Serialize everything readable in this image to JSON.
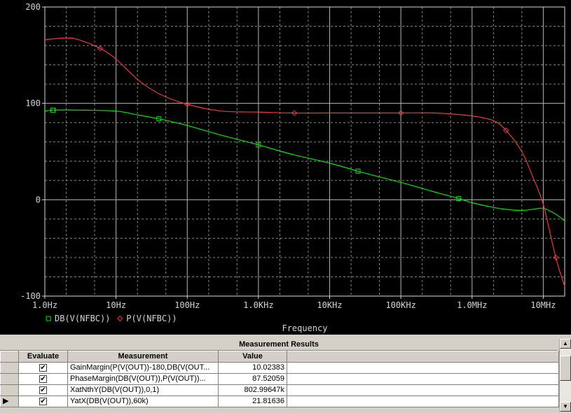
{
  "chart_data": {
    "type": "line",
    "xscale": "log",
    "xlim": [
      1,
      20000000
    ],
    "ylim": [
      -100,
      200
    ],
    "grid": true,
    "xlabel": "Frequency",
    "ylabel": "",
    "x_ticks": [
      {
        "value": 1,
        "label": "1.0Hz"
      },
      {
        "value": 10,
        "label": "10Hz"
      },
      {
        "value": 100,
        "label": "100Hz"
      },
      {
        "value": 1000,
        "label": "1.0KHz"
      },
      {
        "value": 10000,
        "label": "10KHz"
      },
      {
        "value": 100000,
        "label": "100KHz"
      },
      {
        "value": 1000000,
        "label": "1.0MHz"
      },
      {
        "value": 10000000,
        "label": "10MHz"
      }
    ],
    "y_ticks": [
      {
        "value": 200,
        "label": "200"
      },
      {
        "value": 100,
        "label": "100"
      },
      {
        "value": 0,
        "label": "0"
      },
      {
        "value": -100,
        "label": "-100"
      }
    ],
    "legend_position": "bottom-left",
    "series": [
      {
        "name": "DB(V(NFBC))",
        "color": "#00e800",
        "marker": "square",
        "x": [
          1,
          1.3,
          3,
          10,
          20,
          40,
          100,
          300,
          1000,
          3000,
          10000,
          30000,
          100000,
          300000,
          600000,
          1000000,
          2000000,
          3000000,
          5000000,
          7000000,
          10000000,
          15000000,
          20000000
        ],
        "y": [
          92,
          93,
          93,
          92,
          88,
          84,
          77,
          67,
          57,
          47,
          38,
          28,
          18,
          8,
          2,
          -3,
          -8,
          -10,
          -11,
          -10,
          -9,
          -15,
          -22
        ],
        "marker_x": [
          1.3,
          40,
          1000,
          25000,
          650000
        ]
      },
      {
        "name": "P(V(NFBC))",
        "color": "#e83c3c",
        "marker": "diamond",
        "x": [
          1,
          2,
          3,
          6,
          10,
          20,
          40,
          100,
          300,
          1000,
          3000,
          10000,
          100000,
          300000,
          1000000,
          2000000,
          3000000,
          5000000,
          7000000,
          10000000,
          15000000,
          20000000
        ],
        "y": [
          166,
          168,
          166,
          157,
          146,
          125,
          110,
          99,
          92,
          91,
          90,
          90,
          90,
          90,
          87,
          82,
          72,
          50,
          25,
          -5,
          -60,
          -90
        ],
        "marker_x": [
          6,
          100,
          3200,
          100000,
          3000000,
          15000000
        ]
      }
    ]
  },
  "results": {
    "title": "Measurement Results",
    "columns": [
      "Evaluate",
      "Measurement",
      "Value"
    ],
    "rows": [
      {
        "evaluate": true,
        "measurement": "GainMargin(P(V(OUT))-180,DB(V(OUT...",
        "value": "10.02383",
        "active": false
      },
      {
        "evaluate": true,
        "measurement": "PhaseMargin(DB(V(OUT)),P(V(OUT))...",
        "value": "87.52059",
        "active": false
      },
      {
        "evaluate": true,
        "measurement": "XatNthY(DB(V(OUT)),0,1)",
        "value": "802.99647k",
        "active": false
      },
      {
        "evaluate": true,
        "measurement": "YatX(DB(V(OUT)),60k)",
        "value": "21.81636",
        "active": true
      }
    ]
  },
  "colors": {
    "grid": "#b4b4b4",
    "axis": "#d8d8d8",
    "background": "#000000",
    "panel": "#d4d0c8"
  },
  "icons": {
    "check": "checkmark-icon",
    "row_pointer": "row-pointer-icon",
    "scroll_up": "arrow-up-icon",
    "scroll_down": "arrow-down-icon"
  }
}
